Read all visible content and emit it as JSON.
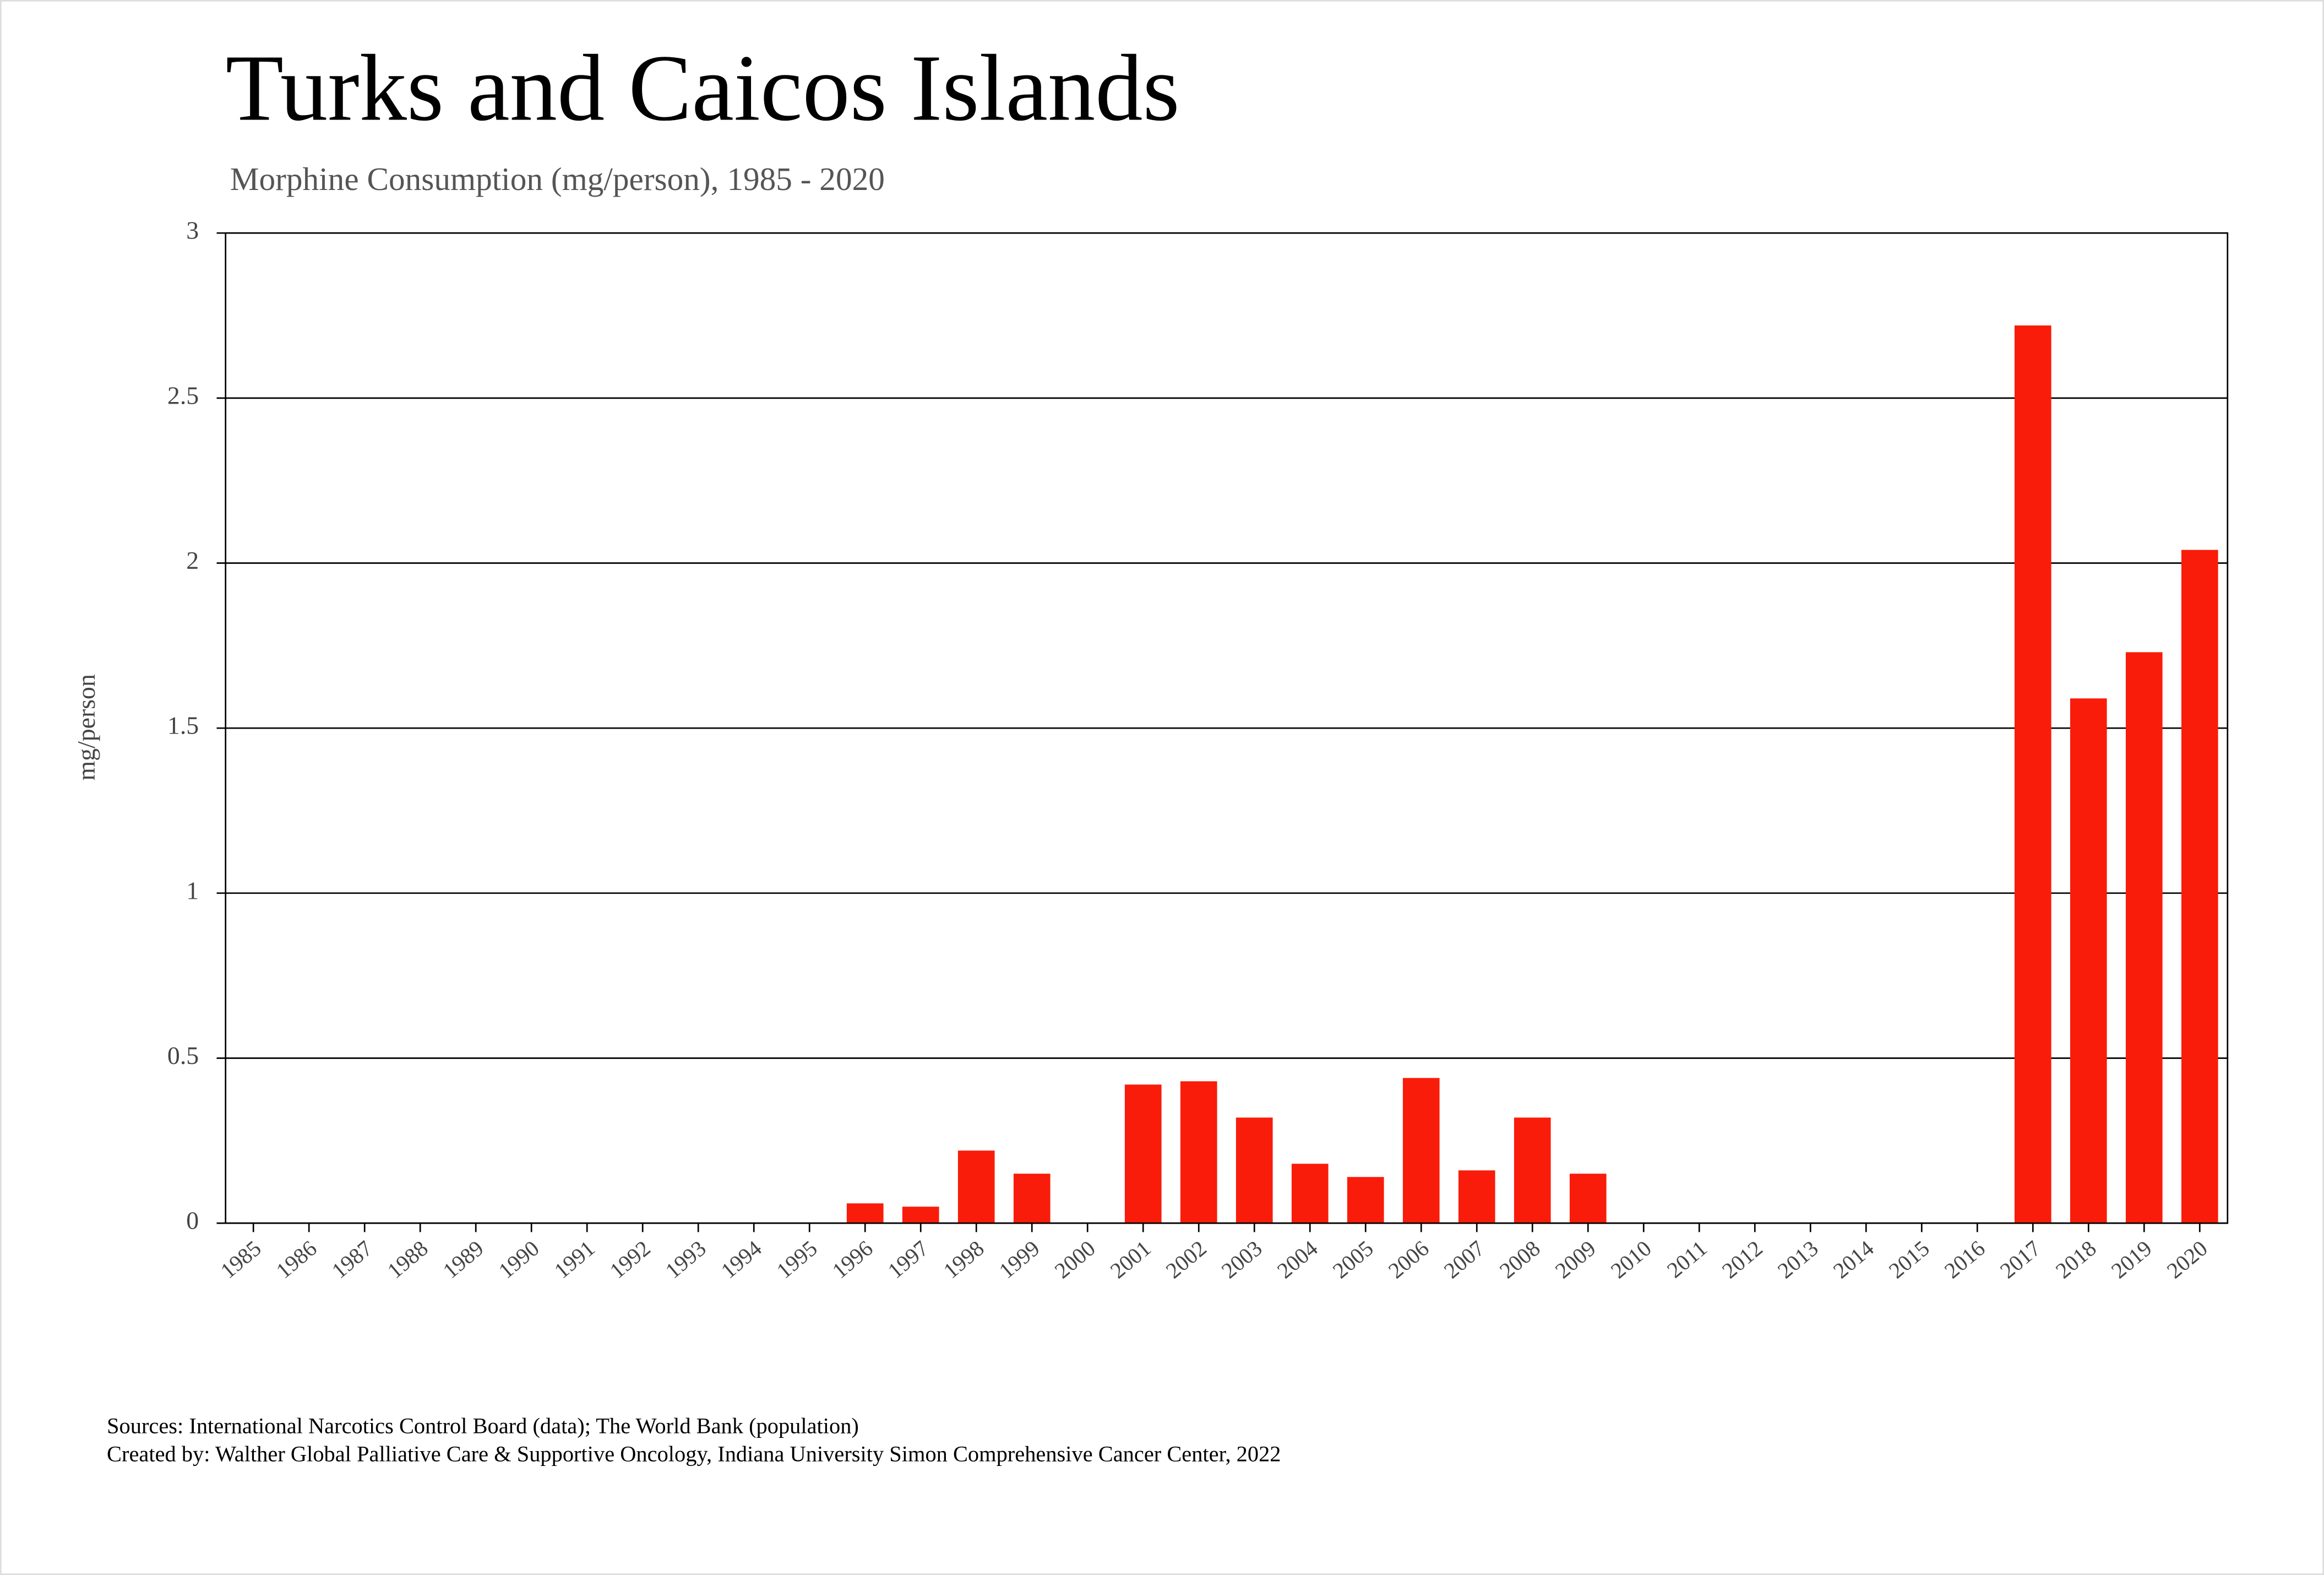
{
  "chart_data": {
    "type": "bar",
    "title": "Turks and Caicos Islands",
    "subtitle": "Morphine Consumption (mg/person), 1985 - 2020",
    "y_label": "mg/person",
    "sources": [
      "Sources: International Narcotics Control Board (data); The World Bank (population)",
      "Created by: Walther  Global Palliative Care & Supportive Oncology, Indiana University Simon Comprehensive Cancer Center, 2022"
    ],
    "categories": [
      "1985",
      "1986",
      "1987",
      "1988",
      "1989",
      "1990",
      "1991",
      "1992",
      "1993",
      "1994",
      "1995",
      "1996",
      "1997",
      "1998",
      "1999",
      "2000",
      "2001",
      "2002",
      "2003",
      "2004",
      "2005",
      "2006",
      "2007",
      "2008",
      "2009",
      "2010",
      "2011",
      "2012",
      "2013",
      "2014",
      "2015",
      "2016",
      "2017",
      "2018",
      "2019",
      "2020"
    ],
    "values": [
      0,
      0,
      0,
      0,
      0,
      0,
      0,
      0,
      0,
      0,
      0,
      0.06,
      0.05,
      0.22,
      0.15,
      0,
      0.42,
      0.43,
      0.32,
      0.18,
      0.14,
      0.44,
      0.16,
      0.32,
      0.15,
      0,
      0,
      0,
      0,
      0,
      0,
      0,
      2.72,
      1.59,
      1.73,
      2.04
    ],
    "color": "#f91c0a",
    "ylim": [
      0,
      3
    ],
    "yticks": [
      0,
      0.5,
      1,
      1.5,
      2,
      2.5,
      3
    ],
    "grid": true
  }
}
